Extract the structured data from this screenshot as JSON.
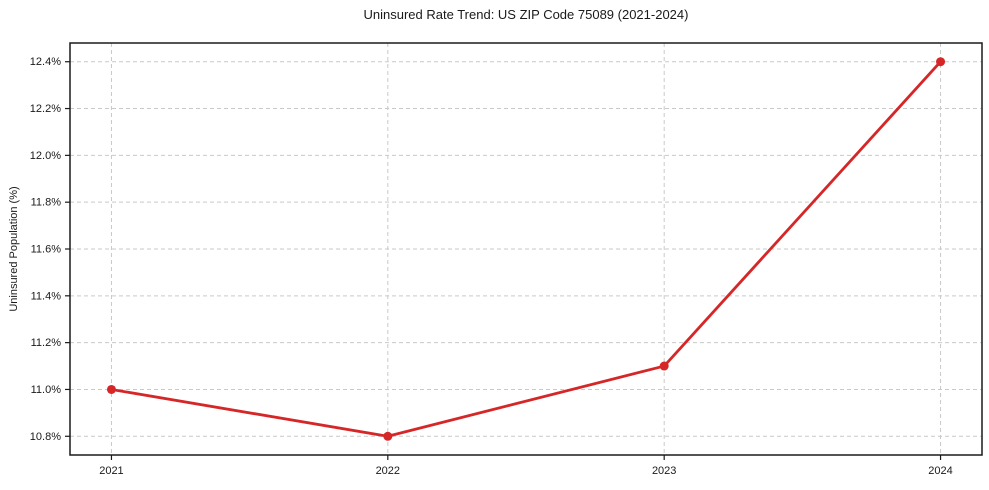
{
  "title": "Uninsured Rate Trend: US ZIP Code 75089 (2021-2024)",
  "colors": {
    "line": "#d62728",
    "marker": "#d62728",
    "grid": "#c9c9c9",
    "spine": "#1a1a1a",
    "tick": "#1a1a1a",
    "text": "#1a1a1a",
    "background": "#ffffff"
  },
  "chart_data": {
    "type": "line",
    "title": "Uninsured Rate Trend: US ZIP Code 75089 (2021-2024)",
    "xlabel": "",
    "ylabel": "Uninsured Population (%)",
    "x": [
      2021,
      2022,
      2023,
      2024
    ],
    "series": [
      {
        "name": "Uninsured Rate",
        "values": [
          11.0,
          10.8,
          11.1,
          12.4
        ]
      }
    ],
    "xticks": [
      2021,
      2022,
      2023,
      2024
    ],
    "xtick_labels": [
      "2021",
      "2022",
      "2023",
      "2024"
    ],
    "yticks": [
      10.8,
      11.0,
      11.2,
      11.4,
      11.6,
      11.8,
      12.0,
      12.2,
      12.4
    ],
    "ytick_labels": [
      "10.8%",
      "11.0%",
      "11.2%",
      "11.4%",
      "11.6%",
      "11.8%",
      "12.0%",
      "12.2%",
      "12.4%"
    ],
    "xlim": [
      2020.85,
      2024.15
    ],
    "ylim": [
      10.72,
      12.48
    ],
    "grid": true,
    "grid_style": "dashed",
    "legend": "none",
    "marker": "circle"
  }
}
